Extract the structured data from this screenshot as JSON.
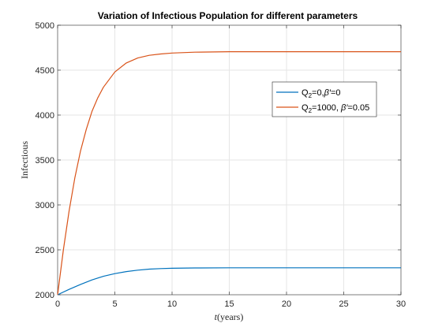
{
  "chart_data": {
    "type": "line",
    "title": "Variation of Infectious Population for different parameters",
    "xlabel": {
      "italic": "t",
      "rest": "(years)"
    },
    "ylabel": "Infectious",
    "xlim": [
      0,
      30
    ],
    "ylim": [
      2000,
      5000
    ],
    "xticks": [
      0,
      5,
      10,
      15,
      20,
      25,
      30
    ],
    "yticks": [
      2000,
      2500,
      3000,
      3500,
      4000,
      4500,
      5000
    ],
    "grid": true,
    "legend_position": "upper-right",
    "colors": {
      "series1": "#0072BD",
      "series2": "#D95319",
      "grid": "#e6e6e6",
      "axis": "#262626"
    },
    "series": [
      {
        "legend": {
          "a": "Q",
          "sub": "2",
          "b": "=0,",
          "greek": "β′",
          "c": "=0"
        },
        "x": [
          0,
          1,
          2,
          3,
          4,
          5,
          6,
          7,
          8,
          9,
          10,
          12,
          15,
          20,
          25,
          30
        ],
        "values": [
          2000,
          2060,
          2115,
          2165,
          2205,
          2235,
          2258,
          2274,
          2285,
          2291,
          2295,
          2298,
          2300,
          2300,
          2300,
          2300
        ]
      },
      {
        "legend": {
          "a": "Q",
          "sub": "2",
          "b": "=1000, ",
          "greek": "β′",
          "c": "=0.05"
        },
        "x": [
          0,
          0.5,
          1,
          1.5,
          2,
          2.5,
          3,
          3.5,
          4,
          5,
          6,
          7,
          8,
          9,
          10,
          12,
          15,
          20,
          25,
          30
        ],
        "values": [
          2000,
          2500,
          2930,
          3300,
          3600,
          3840,
          4040,
          4190,
          4310,
          4480,
          4580,
          4635,
          4665,
          4680,
          4690,
          4700,
          4705,
          4705,
          4705,
          4705
        ]
      }
    ]
  }
}
